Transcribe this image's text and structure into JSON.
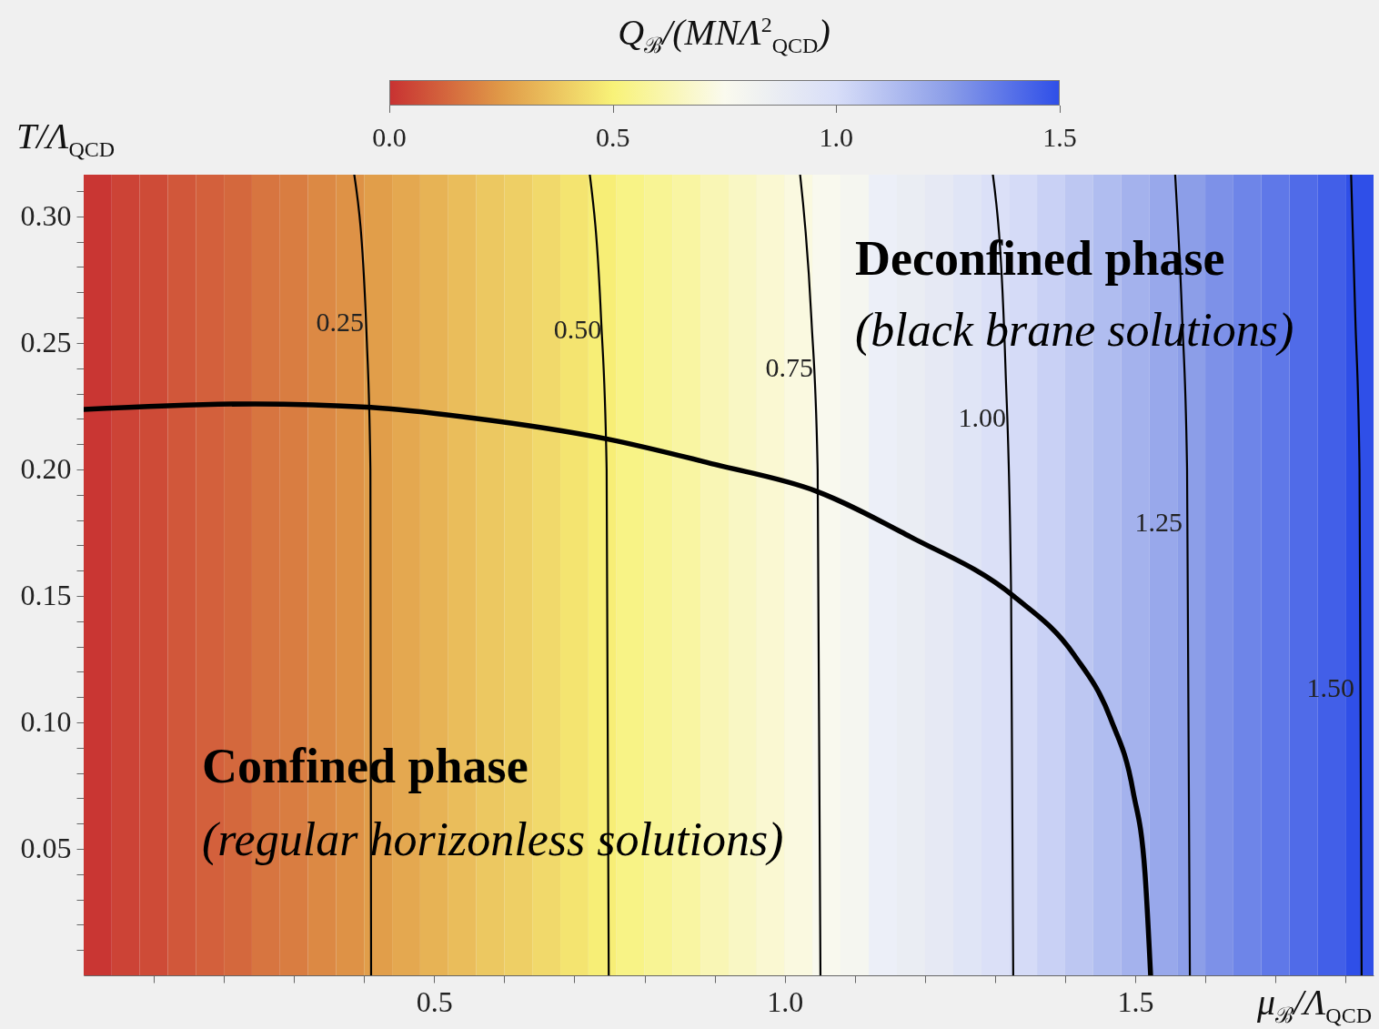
{
  "chart_data": {
    "type": "line",
    "xlabel": "μ$_{ℬ}$/Λ$_{QCD}$",
    "ylabel": "T/Λ$_{QCD}$",
    "clabel": "Q$_{ℬ}$/(MNΛ$^{2}$$_{QCD}$)",
    "xlim": [
      0,
      1.84
    ],
    "ylim": [
      0,
      0.3165
    ],
    "xticks": [
      {
        "value": 0.1,
        "label": null
      },
      {
        "value": 0.2,
        "label": null
      },
      {
        "value": 0.3,
        "label": null
      },
      {
        "value": 0.4,
        "label": null
      },
      {
        "value": 0.5,
        "label": "0.5"
      },
      {
        "value": 0.6,
        "label": null
      },
      {
        "value": 0.7,
        "label": null
      },
      {
        "value": 0.8,
        "label": null
      },
      {
        "value": 0.9,
        "label": null
      },
      {
        "value": 1.0,
        "label": "1.0"
      },
      {
        "value": 1.1,
        "label": null
      },
      {
        "value": 1.2,
        "label": null
      },
      {
        "value": 1.3,
        "label": null
      },
      {
        "value": 1.4,
        "label": null
      },
      {
        "value": 1.5,
        "label": "1.5"
      },
      {
        "value": 1.6,
        "label": null
      },
      {
        "value": 1.7,
        "label": null
      },
      {
        "value": 1.8,
        "label": null
      }
    ],
    "yticks": [
      {
        "value": 0.01,
        "label": null
      },
      {
        "value": 0.02,
        "label": null
      },
      {
        "value": 0.03,
        "label": null
      },
      {
        "value": 0.04,
        "label": null
      },
      {
        "value": 0.05,
        "label": "0.05"
      },
      {
        "value": 0.06,
        "label": null
      },
      {
        "value": 0.07,
        "label": null
      },
      {
        "value": 0.08,
        "label": null
      },
      {
        "value": 0.09,
        "label": null
      },
      {
        "value": 0.1,
        "label": "0.10"
      },
      {
        "value": 0.11,
        "label": null
      },
      {
        "value": 0.12,
        "label": null
      },
      {
        "value": 0.13,
        "label": null
      },
      {
        "value": 0.14,
        "label": null
      },
      {
        "value": 0.15,
        "label": "0.15"
      },
      {
        "value": 0.16,
        "label": null
      },
      {
        "value": 0.17,
        "label": null
      },
      {
        "value": 0.18,
        "label": null
      },
      {
        "value": 0.19,
        "label": null
      },
      {
        "value": 0.2,
        "label": "0.20"
      },
      {
        "value": 0.21,
        "label": null
      },
      {
        "value": 0.22,
        "label": null
      },
      {
        "value": 0.23,
        "label": null
      },
      {
        "value": 0.24,
        "label": null
      },
      {
        "value": 0.25,
        "label": "0.25"
      },
      {
        "value": 0.26,
        "label": null
      },
      {
        "value": 0.27,
        "label": null
      },
      {
        "value": 0.28,
        "label": null
      },
      {
        "value": 0.29,
        "label": null
      },
      {
        "value": 0.3,
        "label": "0.30"
      },
      {
        "value": 0.31,
        "label": null
      }
    ],
    "clim": [
      0,
      1.5
    ],
    "cticks": [
      {
        "value": 0,
        "label": "0.0"
      },
      {
        "value": 0.5,
        "label": "0.5"
      },
      {
        "value": 1.0,
        "label": "1.0"
      },
      {
        "value": 1.5,
        "label": "1.5"
      }
    ],
    "colors": [
      "#c83232",
      "#e09a48",
      "#f8f278",
      "#fafaee",
      "#d8def8",
      "#8c9ee8",
      "#2f4fe8"
    ],
    "bands": [
      {
        "axis": "x",
        "from": 0,
        "to": 0.04,
        "color": "#c93633"
      },
      {
        "axis": "x",
        "from": 0.04,
        "to": 0.08,
        "color": "#cc4336"
      },
      {
        "axis": "x",
        "from": 0.08,
        "to": 0.12,
        "color": "#ce4b37"
      },
      {
        "axis": "x",
        "from": 0.12,
        "to": 0.16,
        "color": "#d1573a"
      },
      {
        "axis": "x",
        "from": 0.16,
        "to": 0.2,
        "color": "#d3603c"
      },
      {
        "axis": "x",
        "from": 0.2,
        "to": 0.24,
        "color": "#d4683d"
      },
      {
        "axis": "x",
        "from": 0.24,
        "to": 0.28,
        "color": "#d77540"
      },
      {
        "axis": "x",
        "from": 0.28,
        "to": 0.32,
        "color": "#d97d41"
      },
      {
        "axis": "x",
        "from": 0.32,
        "to": 0.36,
        "color": "#dc8944"
      },
      {
        "axis": "x",
        "from": 0.36,
        "to": 0.4,
        "color": "#de9246"
      },
      {
        "axis": "x",
        "from": 0.4,
        "to": 0.44,
        "color": "#e19e4a"
      },
      {
        "axis": "x",
        "from": 0.44,
        "to": 0.48,
        "color": "#e4a850"
      },
      {
        "axis": "x",
        "from": 0.48,
        "to": 0.52,
        "color": "#e7b355"
      },
      {
        "axis": "x",
        "from": 0.52,
        "to": 0.56,
        "color": "#eabd5b"
      },
      {
        "axis": "x",
        "from": 0.56,
        "to": 0.6,
        "color": "#ecc861"
      },
      {
        "axis": "x",
        "from": 0.6,
        "to": 0.64,
        "color": "#eecf65"
      },
      {
        "axis": "x",
        "from": 0.64,
        "to": 0.68,
        "color": "#f1d96b"
      },
      {
        "axis": "x",
        "from": 0.68,
        "to": 0.72,
        "color": "#f4e470"
      },
      {
        "axis": "x",
        "from": 0.72,
        "to": 0.76,
        "color": "#f7ee76"
      },
      {
        "axis": "x",
        "from": 0.76,
        "to": 0.8,
        "color": "#f8f386"
      },
      {
        "axis": "x",
        "from": 0.8,
        "to": 0.84,
        "color": "#f8f494"
      },
      {
        "axis": "x",
        "from": 0.84,
        "to": 0.88,
        "color": "#f9f5a2"
      },
      {
        "axis": "x",
        "from": 0.88,
        "to": 0.92,
        "color": "#f9f6b5"
      },
      {
        "axis": "x",
        "from": 0.92,
        "to": 0.96,
        "color": "#f9f7c4"
      },
      {
        "axis": "x",
        "from": 0.96,
        "to": 1.0,
        "color": "#faf8d2"
      },
      {
        "axis": "x",
        "from": 1.0,
        "to": 1.04,
        "color": "#faf9e0"
      },
      {
        "axis": "x",
        "from": 1.04,
        "to": 1.08,
        "color": "#f9f9ee"
      },
      {
        "axis": "x",
        "from": 1.08,
        "to": 1.12,
        "color": "#f5f6f0"
      },
      {
        "axis": "x",
        "from": 1.12,
        "to": 1.16,
        "color": "#eceff8"
      },
      {
        "axis": "x",
        "from": 1.16,
        "to": 1.2,
        "color": "#eaedf3"
      },
      {
        "axis": "x",
        "from": 1.2,
        "to": 1.24,
        "color": "#e6e9f4"
      },
      {
        "axis": "x",
        "from": 1.24,
        "to": 1.28,
        "color": "#e0e5f6"
      },
      {
        "axis": "x",
        "from": 1.28,
        "to": 1.32,
        "color": "#dbe0f7"
      },
      {
        "axis": "x",
        "from": 1.32,
        "to": 1.36,
        "color": "#d5dbf7"
      },
      {
        "axis": "x",
        "from": 1.36,
        "to": 1.4,
        "color": "#c9d1f5"
      },
      {
        "axis": "x",
        "from": 1.4,
        "to": 1.44,
        "color": "#bdc7f2"
      },
      {
        "axis": "x",
        "from": 1.44,
        "to": 1.48,
        "color": "#b0bdf0"
      },
      {
        "axis": "x",
        "from": 1.48,
        "to": 1.52,
        "color": "#a4b2ed"
      },
      {
        "axis": "x",
        "from": 1.52,
        "to": 1.56,
        "color": "#98a8eb"
      },
      {
        "axis": "x",
        "from": 1.56,
        "to": 1.6,
        "color": "#8c9ee8"
      },
      {
        "axis": "x",
        "from": 1.6,
        "to": 1.64,
        "color": "#7d91e8"
      },
      {
        "axis": "x",
        "from": 1.64,
        "to": 1.68,
        "color": "#6e85e8"
      },
      {
        "axis": "x",
        "from": 1.68,
        "to": 1.72,
        "color": "#5f78e8"
      },
      {
        "axis": "x",
        "from": 1.72,
        "to": 1.76,
        "color": "#506be8"
      },
      {
        "axis": "x",
        "from": 1.76,
        "to": 1.8,
        "color": "#425fe8"
      },
      {
        "axis": "x",
        "from": 1.8,
        "to": 1.84,
        "color": "#2f4fe8"
      }
    ],
    "series": [
      {
        "name": "0.25",
        "color": "#000000",
        "x": [
          0.41,
          0.409,
          0.404,
          0.386
        ],
        "values": [
          0,
          0.2,
          0.25,
          0.3165
        ]
      },
      {
        "name": "0.50",
        "color": "#000000",
        "x": [
          0.749,
          0.746,
          0.738,
          0.722
        ],
        "values": [
          0,
          0.2,
          0.26,
          0.3165
        ]
      },
      {
        "name": "0.75",
        "color": "#000000",
        "x": [
          1.051,
          1.047,
          1.038,
          1.022
        ],
        "values": [
          0,
          0.2,
          0.26,
          0.3165
        ]
      },
      {
        "name": "1.00",
        "color": "#000000",
        "x": [
          1.326,
          1.323,
          1.315,
          1.297
        ],
        "values": [
          0,
          0.15,
          0.24,
          0.3165
        ]
      },
      {
        "name": "1.25",
        "color": "#000000",
        "x": [
          1.578,
          1.574,
          1.567,
          1.557
        ],
        "values": [
          0,
          0.2,
          0.26,
          0.3165
        ]
      },
      {
        "name": "1.50",
        "color": "#000000",
        "x": [
          1.823,
          1.82,
          1.814,
          1.808
        ],
        "values": [
          0,
          0.2,
          0.26,
          0.3165
        ]
      },
      {
        "color": "#000000",
        "x": [
          0,
          0.244,
          0.41,
          0.55,
          0.749,
          0.9,
          1.045,
          1.179,
          1.326,
          1.413,
          1.465,
          1.497,
          1.514,
          1.522
        ],
        "values": [
          0.2237,
          0.2259,
          0.2245,
          0.2205,
          0.2119,
          0.202,
          0.1914,
          0.1734,
          0.15,
          0.1266,
          0.1014,
          0.0727,
          0.0403,
          0
        ]
      }
    ],
    "annotations": [
      "Deconfined phase",
      "(black brane solutions)",
      "Confined phase",
      "(regular horizonless solutions)"
    ]
  }
}
